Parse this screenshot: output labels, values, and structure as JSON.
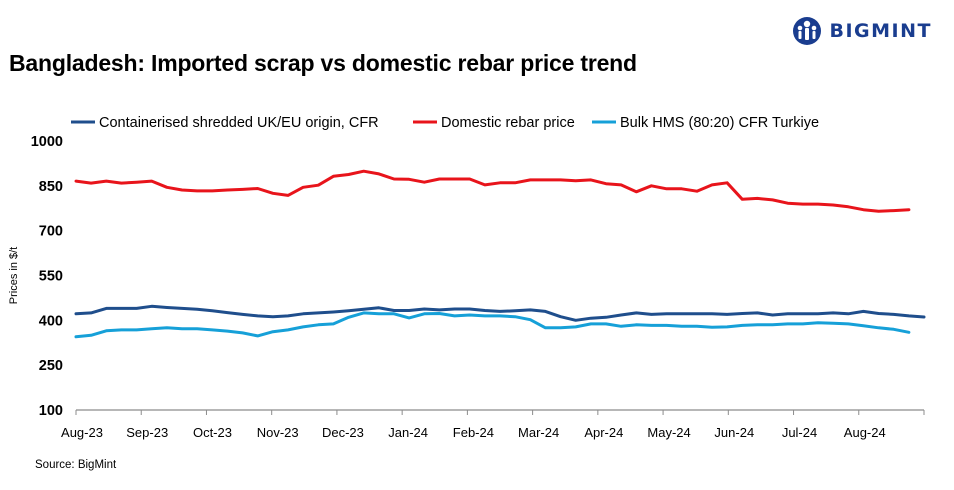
{
  "brand": {
    "name": "BIGMINT",
    "color": "#1a3d8f"
  },
  "title": "Bangladesh: Imported scrap vs domestic rebar price trend",
  "source": "Source: BigMint",
  "chart_data": {
    "type": "line",
    "ylabel": "Prices in $/t",
    "xlabel": "",
    "ylim": [
      100,
      1000
    ],
    "yticks": [
      100,
      250,
      400,
      550,
      700,
      850,
      1000
    ],
    "grid": false,
    "legend_position": "top",
    "x_tick_labels": [
      "Aug-23",
      "Sep-23",
      "Oct-23",
      "Nov-23",
      "Dec-23",
      "Jan-24",
      "Feb-24",
      "Mar-24",
      "Apr-24",
      "May-24",
      "Jun-24",
      "Jul-24",
      "Aug-24"
    ],
    "x_start": "2023-08-04",
    "x_end": "2024-08-30",
    "series": [
      {
        "name": "Containerised shredded UK/EU origin, CFR",
        "color": "#1f4e8c",
        "points": [
          [
            "2023-08-04",
            422
          ],
          [
            "2023-08-11",
            425
          ],
          [
            "2023-08-18",
            440
          ],
          [
            "2023-08-25",
            440
          ],
          [
            "2023-09-01",
            440
          ],
          [
            "2023-09-08",
            447
          ],
          [
            "2023-09-15",
            443
          ],
          [
            "2023-09-22",
            440
          ],
          [
            "2023-09-29",
            437
          ],
          [
            "2023-10-06",
            432
          ],
          [
            "2023-10-13",
            426
          ],
          [
            "2023-10-20",
            420
          ],
          [
            "2023-10-27",
            415
          ],
          [
            "2023-11-03",
            412
          ],
          [
            "2023-11-10",
            415
          ],
          [
            "2023-11-17",
            422
          ],
          [
            "2023-11-24",
            425
          ],
          [
            "2023-12-01",
            428
          ],
          [
            "2023-12-08",
            432
          ],
          [
            "2023-12-15",
            437
          ],
          [
            "2023-12-22",
            442
          ],
          [
            "2023-12-29",
            433
          ],
          [
            "2024-01-05",
            433
          ],
          [
            "2024-01-12",
            438
          ],
          [
            "2024-01-19",
            435
          ],
          [
            "2024-01-26",
            438
          ],
          [
            "2024-02-02",
            438
          ],
          [
            "2024-02-09",
            433
          ],
          [
            "2024-02-16",
            430
          ],
          [
            "2024-02-23",
            432
          ],
          [
            "2024-03-01",
            435
          ],
          [
            "2024-03-08",
            430
          ],
          [
            "2024-03-15",
            412
          ],
          [
            "2024-03-22",
            400
          ],
          [
            "2024-03-29",
            407
          ],
          [
            "2024-04-05",
            410
          ],
          [
            "2024-04-12",
            418
          ],
          [
            "2024-04-19",
            425
          ],
          [
            "2024-04-26",
            420
          ],
          [
            "2024-05-03",
            422
          ],
          [
            "2024-05-10",
            422
          ],
          [
            "2024-05-17",
            422
          ],
          [
            "2024-05-24",
            422
          ],
          [
            "2024-05-31",
            420
          ],
          [
            "2024-06-07",
            423
          ],
          [
            "2024-06-14",
            425
          ],
          [
            "2024-06-21",
            418
          ],
          [
            "2024-06-28",
            422
          ],
          [
            "2024-07-05",
            422
          ],
          [
            "2024-07-12",
            422
          ],
          [
            "2024-07-19",
            425
          ],
          [
            "2024-07-26",
            422
          ],
          [
            "2024-08-02",
            430
          ],
          [
            "2024-08-09",
            423
          ],
          [
            "2024-08-16",
            420
          ],
          [
            "2024-08-23",
            415
          ],
          [
            "2024-08-30",
            411
          ]
        ]
      },
      {
        "name": "Domestic rebar price",
        "color": "#e8141b",
        "points": [
          [
            "2023-08-04",
            866
          ],
          [
            "2023-08-11",
            859
          ],
          [
            "2023-08-18",
            866
          ],
          [
            "2023-08-25",
            859
          ],
          [
            "2023-09-01",
            862
          ],
          [
            "2023-09-08",
            866
          ],
          [
            "2023-09-15",
            845
          ],
          [
            "2023-09-22",
            836
          ],
          [
            "2023-09-29",
            833
          ],
          [
            "2023-10-06",
            833
          ],
          [
            "2023-10-13",
            836
          ],
          [
            "2023-10-20",
            838
          ],
          [
            "2023-10-27",
            841
          ],
          [
            "2023-11-03",
            825
          ],
          [
            "2023-11-10",
            818
          ],
          [
            "2023-11-17",
            845
          ],
          [
            "2023-11-24",
            852
          ],
          [
            "2023-12-01",
            882
          ],
          [
            "2023-12-08",
            888
          ],
          [
            "2023-12-15",
            899
          ],
          [
            "2023-12-22",
            890
          ],
          [
            "2023-12-29",
            873
          ],
          [
            "2024-01-05",
            872
          ],
          [
            "2024-01-12",
            862
          ],
          [
            "2024-01-19",
            873
          ],
          [
            "2024-01-26",
            873
          ],
          [
            "2024-02-02",
            873
          ],
          [
            "2024-02-09",
            853
          ],
          [
            "2024-02-16",
            860
          ],
          [
            "2024-02-23",
            860
          ],
          [
            "2024-03-01",
            870
          ],
          [
            "2024-03-08",
            870
          ],
          [
            "2024-03-15",
            870
          ],
          [
            "2024-03-22",
            867
          ],
          [
            "2024-03-29",
            870
          ],
          [
            "2024-04-05",
            857
          ],
          [
            "2024-04-12",
            853
          ],
          [
            "2024-04-19",
            830
          ],
          [
            "2024-04-26",
            850
          ],
          [
            "2024-05-03",
            840
          ],
          [
            "2024-05-10",
            840
          ],
          [
            "2024-05-17",
            832
          ],
          [
            "2024-05-24",
            853
          ],
          [
            "2024-05-31",
            860
          ],
          [
            "2024-06-07",
            805
          ],
          [
            "2024-06-14",
            808
          ],
          [
            "2024-06-21",
            803
          ],
          [
            "2024-06-28",
            792
          ],
          [
            "2024-07-05",
            789
          ],
          [
            "2024-07-12",
            789
          ],
          [
            "2024-07-19",
            786
          ],
          [
            "2024-07-26",
            780
          ],
          [
            "2024-08-02",
            770
          ],
          [
            "2024-08-09",
            765
          ],
          [
            "2024-08-16",
            767
          ],
          [
            "2024-08-23",
            770
          ]
        ]
      },
      {
        "name": "Bulk HMS (80:20) CFR Turkiye",
        "color": "#16a0d8",
        "points": [
          [
            "2023-08-04",
            345
          ],
          [
            "2023-08-11",
            350
          ],
          [
            "2023-08-18",
            365
          ],
          [
            "2023-08-25",
            368
          ],
          [
            "2023-09-01",
            368
          ],
          [
            "2023-09-08",
            372
          ],
          [
            "2023-09-15",
            375
          ],
          [
            "2023-09-22",
            372
          ],
          [
            "2023-09-29",
            372
          ],
          [
            "2023-10-06",
            368
          ],
          [
            "2023-10-13",
            364
          ],
          [
            "2023-10-20",
            358
          ],
          [
            "2023-10-27",
            348
          ],
          [
            "2023-11-03",
            362
          ],
          [
            "2023-11-10",
            368
          ],
          [
            "2023-11-17",
            378
          ],
          [
            "2023-11-24",
            385
          ],
          [
            "2023-12-01",
            388
          ],
          [
            "2023-12-08",
            410
          ],
          [
            "2023-12-15",
            425
          ],
          [
            "2023-12-22",
            422
          ],
          [
            "2023-12-29",
            422
          ],
          [
            "2024-01-05",
            408
          ],
          [
            "2024-01-12",
            422
          ],
          [
            "2024-01-19",
            423
          ],
          [
            "2024-01-26",
            415
          ],
          [
            "2024-02-02",
            418
          ],
          [
            "2024-02-09",
            415
          ],
          [
            "2024-02-16",
            415
          ],
          [
            "2024-02-23",
            412
          ],
          [
            "2024-03-01",
            402
          ],
          [
            "2024-03-08",
            375
          ],
          [
            "2024-03-15",
            375
          ],
          [
            "2024-03-22",
            378
          ],
          [
            "2024-03-29",
            388
          ],
          [
            "2024-04-05",
            388
          ],
          [
            "2024-04-12",
            380
          ],
          [
            "2024-04-19",
            385
          ],
          [
            "2024-04-26",
            383
          ],
          [
            "2024-05-03",
            383
          ],
          [
            "2024-05-10",
            380
          ],
          [
            "2024-05-17",
            380
          ],
          [
            "2024-05-24",
            377
          ],
          [
            "2024-05-31",
            378
          ],
          [
            "2024-06-07",
            383
          ],
          [
            "2024-06-14",
            385
          ],
          [
            "2024-06-21",
            385
          ],
          [
            "2024-06-28",
            388
          ],
          [
            "2024-07-05",
            388
          ],
          [
            "2024-07-12",
            392
          ],
          [
            "2024-07-19",
            390
          ],
          [
            "2024-07-26",
            388
          ],
          [
            "2024-08-02",
            382
          ],
          [
            "2024-08-09",
            375
          ],
          [
            "2024-08-16",
            370
          ],
          [
            "2024-08-23",
            360
          ]
        ]
      }
    ]
  }
}
